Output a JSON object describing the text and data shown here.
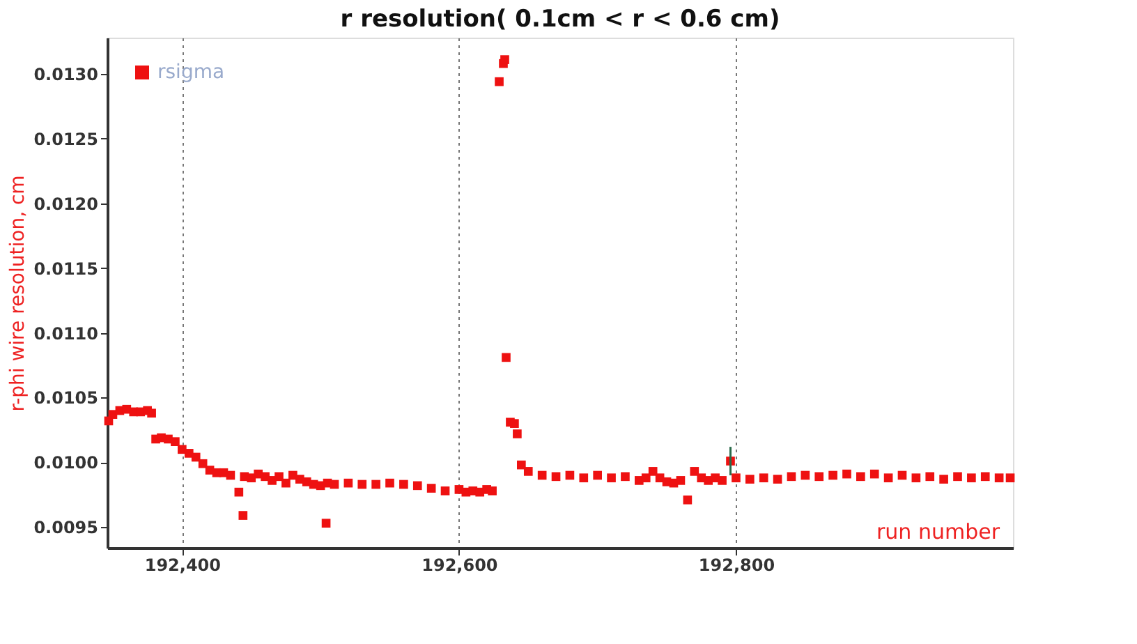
{
  "chart_data": {
    "type": "scatter",
    "title": "r resolution( 0.1cm < r < 0.6 cm)",
    "xlabel": "run number",
    "ylabel": "r-phi wire resolution, cm",
    "xlim": [
      192346,
      193000
    ],
    "ylim": [
      0.00934,
      0.01328
    ],
    "xticks": [
      {
        "value": 192400,
        "label": "192,400"
      },
      {
        "value": 192600,
        "label": "192,600"
      },
      {
        "value": 192800,
        "label": "192,800"
      }
    ],
    "yticks": [
      0.0095,
      {
        "value": 0.01,
        "label": "0.0100"
      },
      0.0105,
      {
        "value": 0.011,
        "label": "0.0110"
      },
      0.0115,
      {
        "value": 0.012,
        "label": "0.0120"
      },
      0.0125,
      {
        "value": 0.013,
        "label": "0.0130"
      }
    ],
    "grid": "x",
    "legend": "top left",
    "marker": "square",
    "series": [
      {
        "name": "rsigma",
        "color": "#ee1111",
        "x": [
          192347,
          192350,
          192355,
          192360,
          192365,
          192370,
          192375,
          192378,
          192381,
          192385,
          192390,
          192395,
          192400,
          192405,
          192410,
          192415,
          192420,
          192425,
          192430,
          192435,
          192441,
          192444,
          192445,
          192450,
          192455,
          192460,
          192465,
          192470,
          192475,
          192480,
          192485,
          192490,
          192495,
          192500,
          192504,
          192505,
          192510,
          192520,
          192530,
          192540,
          192550,
          192560,
          192570,
          192580,
          192590,
          192600,
          192605,
          192610,
          192615,
          192620,
          192624,
          192629,
          192632,
          192633,
          192634,
          192637,
          192640,
          192642,
          192645,
          192650,
          192660,
          192670,
          192680,
          192690,
          192700,
          192710,
          192720,
          192730,
          192735,
          192740,
          192745,
          192750,
          192755,
          192760,
          192765,
          192770,
          192775,
          192780,
          192785,
          192790,
          192796,
          192800,
          192810,
          192820,
          192830,
          192840,
          192850,
          192860,
          192870,
          192880,
          192890,
          192900,
          192910,
          192920,
          192930,
          192940,
          192950,
          192960,
          192970,
          192980,
          192990,
          192998
        ],
        "values": [
          0.01032,
          0.01037,
          0.0104,
          0.01041,
          0.01039,
          0.01039,
          0.0104,
          0.01038,
          0.01018,
          0.01019,
          0.01018,
          0.01016,
          0.0101,
          0.01007,
          0.01004,
          0.00999,
          0.00994,
          0.00992,
          0.00992,
          0.0099,
          0.00977,
          0.00959,
          0.00989,
          0.00988,
          0.00991,
          0.00989,
          0.00986,
          0.00989,
          0.00984,
          0.0099,
          0.00987,
          0.00985,
          0.00983,
          0.00982,
          0.00953,
          0.00984,
          0.00983,
          0.00984,
          0.00983,
          0.00983,
          0.00984,
          0.00983,
          0.00982,
          0.0098,
          0.00978,
          0.00979,
          0.00977,
          0.00978,
          0.00977,
          0.00979,
          0.00978,
          0.01294,
          0.01308,
          0.01311,
          0.01081,
          0.01031,
          0.0103,
          0.01022,
          0.00998,
          0.00993,
          0.0099,
          0.00989,
          0.0099,
          0.00988,
          0.0099,
          0.00988,
          0.00989,
          0.00986,
          0.00988,
          0.00993,
          0.00988,
          0.00985,
          0.00984,
          0.00986,
          0.00971,
          0.00993,
          0.00988,
          0.00986,
          0.00988,
          0.00986,
          0.01001,
          0.00988,
          0.00987,
          0.00988,
          0.00987,
          0.00989,
          0.0099,
          0.00989,
          0.0099,
          0.00991,
          0.00989,
          0.00991,
          0.00988,
          0.0099,
          0.00988,
          0.00989,
          0.00987,
          0.00989,
          0.00988,
          0.00989,
          0.00988,
          0.00988
        ],
        "errors": [
          null,
          null,
          null,
          null,
          null,
          null,
          null,
          null,
          null,
          null,
          null,
          null,
          null,
          null,
          null,
          null,
          null,
          null,
          null,
          null,
          null,
          null,
          null,
          null,
          null,
          null,
          null,
          null,
          null,
          null,
          null,
          null,
          null,
          null,
          null,
          null,
          null,
          null,
          null,
          null,
          null,
          null,
          null,
          null,
          null,
          null,
          null,
          null,
          null,
          null,
          null,
          null,
          null,
          null,
          null,
          null,
          null,
          null,
          null,
          null,
          null,
          null,
          null,
          null,
          null,
          null,
          null,
          null,
          null,
          null,
          null,
          null,
          null,
          null,
          null,
          null,
          null,
          null,
          null,
          null,
          0.00011,
          null,
          null,
          null,
          null,
          null,
          null,
          null,
          null,
          null,
          null,
          null,
          null,
          null,
          null,
          null,
          null,
          null,
          null,
          null,
          null,
          null
        ]
      }
    ]
  }
}
